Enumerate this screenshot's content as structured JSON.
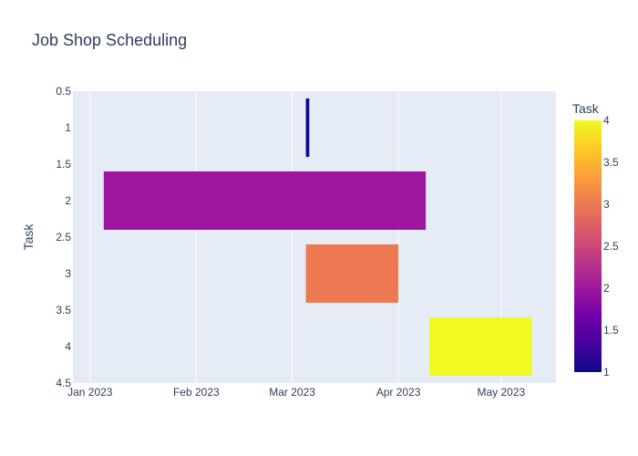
{
  "chart_data": {
    "type": "timeline",
    "title": "Job Shop Scheduling",
    "ylabel": "Task",
    "xlabel": "",
    "x_ticks": [
      "2023-01-01",
      "2023-02-01",
      "2023-03-01",
      "2023-04-01",
      "2023-05-01"
    ],
    "x_tick_labels": [
      "Jan 2023",
      "Feb 2023",
      "Mar 2023",
      "Apr 2023",
      "May 2023"
    ],
    "xlim": [
      "2022-12-27",
      "2023-05-17"
    ],
    "y_ticks": [
      "0.5",
      "1",
      "1.5",
      "2",
      "2.5",
      "3",
      "3.5",
      "4",
      "4.5"
    ],
    "ylim": [
      0.5,
      4.5
    ],
    "grid": true,
    "tasks": [
      {
        "task": 1,
        "start": "2023-03-05",
        "end": "2023-03-06",
        "color_value": 1
      },
      {
        "task": 2,
        "start": "2023-01-05",
        "end": "2023-04-09",
        "color_value": 2
      },
      {
        "task": 3,
        "start": "2023-03-05",
        "end": "2023-04-01",
        "color_value": 3
      },
      {
        "task": 4,
        "start": "2023-04-10",
        "end": "2023-05-10",
        "color_value": 4
      }
    ],
    "colorbar": {
      "title": "Task",
      "min": 1,
      "max": 4,
      "tick_labels": [
        "1",
        "1.5",
        "2",
        "2.5",
        "3",
        "3.5",
        "4"
      ],
      "colors": [
        "#0d0887",
        "#46039f",
        "#7201a8",
        "#9c179e",
        "#bd3786",
        "#d8576b",
        "#ed7953",
        "#fb9f3a",
        "#fdca26",
        "#f0f921"
      ]
    }
  }
}
